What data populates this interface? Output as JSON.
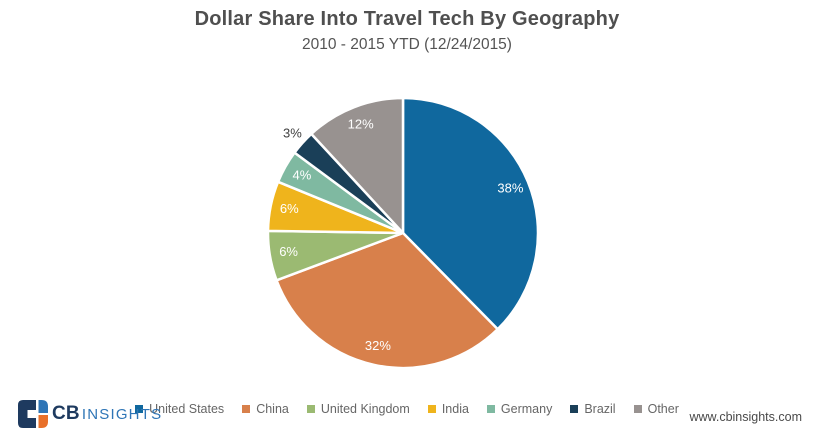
{
  "chart_data": {
    "type": "pie",
    "title": "Dollar Share Into Travel Tech By Geography",
    "subtitle": "2010 - 2015 YTD (12/24/2015)",
    "direction": "clockwise",
    "start_angle_deg": 0,
    "legend_position": "bottom",
    "separator_color": "#FFFFFF",
    "inside_label_color": "#FFFFFF",
    "outside_label_color": "#3F3F3F",
    "slices": [
      {
        "label": "United States",
        "value_pct": 38,
        "display": "38%",
        "color": "#10689E",
        "label_placement": "inside"
      },
      {
        "label": "China",
        "value_pct": 32,
        "display": "32%",
        "color": "#D8804B",
        "label_placement": "inside"
      },
      {
        "label": "United Kingdom",
        "value_pct": 6,
        "display": "6%",
        "color": "#9BBA72",
        "label_placement": "inside"
      },
      {
        "label": "India",
        "value_pct": 6,
        "display": "6%",
        "color": "#EFB41C",
        "label_placement": "inside"
      },
      {
        "label": "Germany",
        "value_pct": 4,
        "display": "4%",
        "color": "#7FB9A1",
        "label_placement": "inside"
      },
      {
        "label": "Brazil",
        "value_pct": 3,
        "display": "3%",
        "color": "#1A3F58",
        "label_placement": "outside"
      },
      {
        "label": "Other",
        "value_pct": 12,
        "display": "12%",
        "color": "#989290",
        "label_placement": "inside"
      }
    ]
  },
  "footer": {
    "logo": {
      "bold": "CB",
      "light": "INSIGHTS"
    },
    "url": "www.cbinsights.com"
  },
  "logo_colors": {
    "navy": "#1E3A5F",
    "blue": "#2E75B6",
    "orange": "#E8702A"
  }
}
